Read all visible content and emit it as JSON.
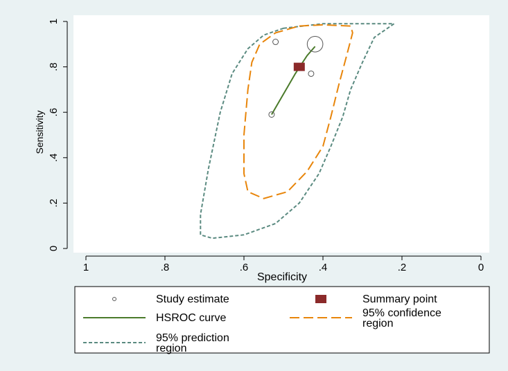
{
  "chart_data": {
    "type": "scatter",
    "xlabel": "Specificity",
    "ylabel": "Sensitivity",
    "x_reversed": true,
    "xlim": [
      1,
      0
    ],
    "ylim": [
      0,
      1
    ],
    "xticks": [
      {
        "value": 1,
        "label": "1"
      },
      {
        "value": 0.8,
        "label": ".8"
      },
      {
        "value": 0.6,
        "label": ".6"
      },
      {
        "value": 0.4,
        "label": ".4"
      },
      {
        "value": 0.2,
        "label": ".2"
      },
      {
        "value": 0,
        "label": "0"
      }
    ],
    "yticks": [
      {
        "value": 0,
        "label": "0"
      },
      {
        "value": 0.2,
        "label": ".2"
      },
      {
        "value": 0.4,
        "label": ".4"
      },
      {
        "value": 0.6,
        "label": ".6"
      },
      {
        "value": 0.8,
        "label": ".8"
      },
      {
        "value": 1,
        "label": "1"
      }
    ],
    "grid": false,
    "legend_position": "bottom",
    "study_estimates": [
      {
        "specificity": 0.52,
        "sensitivity": 0.91,
        "weight": 1
      },
      {
        "specificity": 0.42,
        "sensitivity": 0.9,
        "weight": 8
      },
      {
        "specificity": 0.43,
        "sensitivity": 0.77,
        "weight": 1
      },
      {
        "specificity": 0.53,
        "sensitivity": 0.59,
        "weight": 1
      }
    ],
    "summary_point": {
      "specificity": 0.46,
      "sensitivity": 0.8
    },
    "hsroc_curve": [
      [
        0.53,
        0.59
      ],
      [
        0.51,
        0.65
      ],
      [
        0.49,
        0.71
      ],
      [
        0.47,
        0.77
      ],
      [
        0.455,
        0.81
      ],
      [
        0.44,
        0.85
      ],
      [
        0.42,
        0.89
      ]
    ],
    "confidence_region": [
      [
        0.46,
        0.98
      ],
      [
        0.4,
        0.985
      ],
      [
        0.33,
        0.98
      ],
      [
        0.325,
        0.95
      ],
      [
        0.34,
        0.85
      ],
      [
        0.36,
        0.72
      ],
      [
        0.38,
        0.58
      ],
      [
        0.4,
        0.45
      ],
      [
        0.44,
        0.34
      ],
      [
        0.49,
        0.25
      ],
      [
        0.55,
        0.22
      ],
      [
        0.59,
        0.25
      ],
      [
        0.6,
        0.33
      ],
      [
        0.6,
        0.5
      ],
      [
        0.59,
        0.7
      ],
      [
        0.58,
        0.82
      ],
      [
        0.56,
        0.9
      ],
      [
        0.52,
        0.95
      ],
      [
        0.46,
        0.98
      ]
    ],
    "prediction_region": [
      [
        0.5,
        0.97
      ],
      [
        0.4,
        0.99
      ],
      [
        0.32,
        0.99
      ],
      [
        0.22,
        0.99
      ],
      [
        0.27,
        0.93
      ],
      [
        0.3,
        0.82
      ],
      [
        0.33,
        0.7
      ],
      [
        0.35,
        0.58
      ],
      [
        0.38,
        0.45
      ],
      [
        0.41,
        0.33
      ],
      [
        0.46,
        0.2
      ],
      [
        0.52,
        0.11
      ],
      [
        0.6,
        0.06
      ],
      [
        0.68,
        0.045
      ],
      [
        0.71,
        0.06
      ],
      [
        0.71,
        0.15
      ],
      [
        0.69,
        0.35
      ],
      [
        0.66,
        0.6
      ],
      [
        0.63,
        0.77
      ],
      [
        0.59,
        0.88
      ],
      [
        0.55,
        0.94
      ],
      [
        0.5,
        0.97
      ]
    ],
    "legend": [
      {
        "key": "study",
        "label": "Study estimate",
        "lines": [
          "Study estimate"
        ]
      },
      {
        "key": "summary",
        "label": "Summary point",
        "lines": [
          "Summary point"
        ]
      },
      {
        "key": "hsroc",
        "label": "HSROC curve",
        "lines": [
          "HSROC curve"
        ]
      },
      {
        "key": "confidence",
        "label": "95% confidence region",
        "lines": [
          "95% confidence",
          "region"
        ]
      },
      {
        "key": "prediction",
        "label": "95% prediction region",
        "lines": [
          "95% prediction",
          "region"
        ]
      }
    ],
    "colors": {
      "background": "#eaf2f3",
      "plot_background": "#ffffff",
      "hsroc": "#4a7a2a",
      "confidence": "#e8850a",
      "prediction": "#5a8a80",
      "summary": "#8b2a2a",
      "study": "#555555"
    }
  }
}
